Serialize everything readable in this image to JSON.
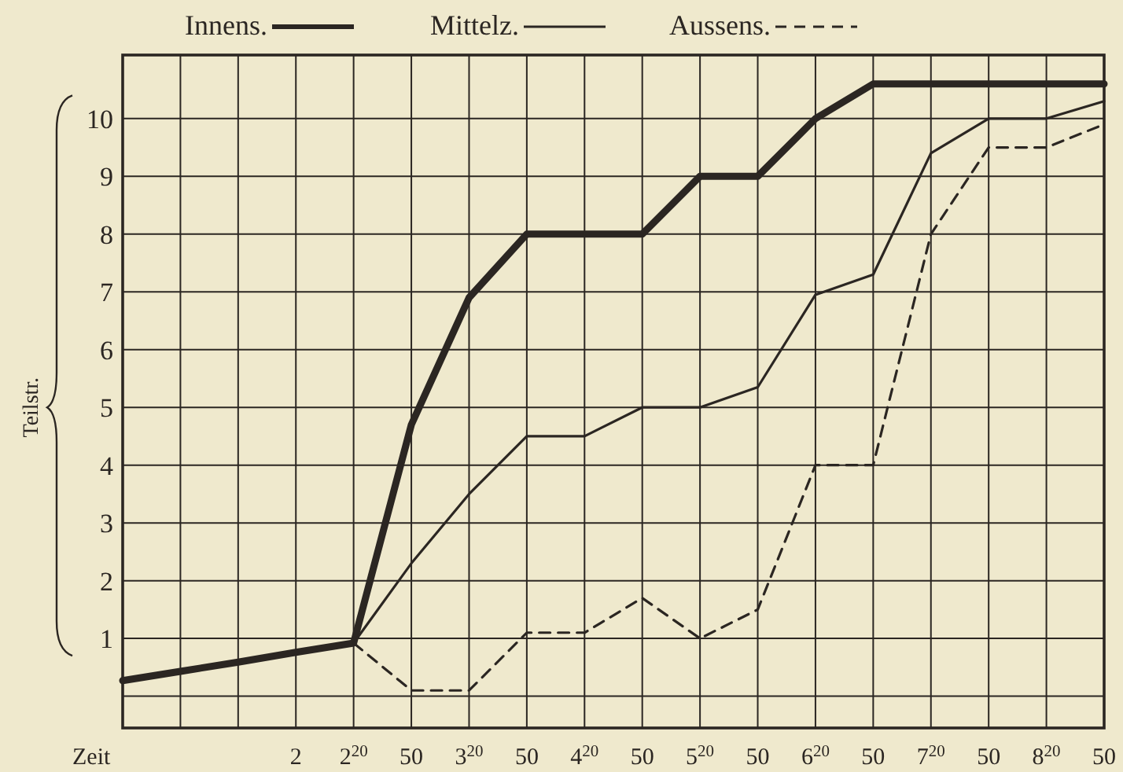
{
  "chart_data": {
    "type": "line",
    "ylabel": "Teilstr.",
    "xlabel": "Zeit",
    "categories": [
      null,
      null,
      null,
      "2",
      "2$^{20}$",
      "50",
      "3$^{20}$",
      "50",
      "4$^{20}$",
      "50",
      "5$^{20}$",
      "50",
      "6$^{20}$",
      "50",
      "7$^{20}$",
      "50",
      "8$^{20}$",
      "50"
    ],
    "ylim": [
      -0.55,
      11.1
    ],
    "yticks": [
      {
        "value": 0,
        "label": null
      },
      1,
      2,
      3,
      4,
      5,
      6,
      7,
      8,
      9,
      10
    ],
    "grid": true,
    "legend": "top",
    "series": [
      {
        "name": "Innens.",
        "color": "#2b2622",
        "line_style": "solid",
        "values": [
          0.27,
          0.43,
          0.59,
          0.76,
          0.92,
          4.7,
          6.9,
          8.0,
          8.0,
          8.0,
          9.0,
          9.0,
          10.0,
          10.6,
          10.6,
          10.6,
          10.6,
          10.6
        ]
      },
      {
        "name": "Mittelz.",
        "color": "#2b2622",
        "line_style": "solid",
        "values": [
          null,
          null,
          null,
          null,
          0.92,
          2.3,
          3.5,
          4.5,
          4.5,
          5.0,
          5.0,
          5.35,
          6.95,
          7.3,
          9.4,
          10.0,
          10.0,
          10.3
        ]
      },
      {
        "name": "Aussens.",
        "color": "#2b2622",
        "line_style": "dashed",
        "values": [
          null,
          null,
          null,
          null,
          0.92,
          0.1,
          0.1,
          1.1,
          1.1,
          1.7,
          1.0,
          1.5,
          4.0,
          4.0,
          8.0,
          9.5,
          9.5,
          9.9
        ]
      }
    ]
  }
}
